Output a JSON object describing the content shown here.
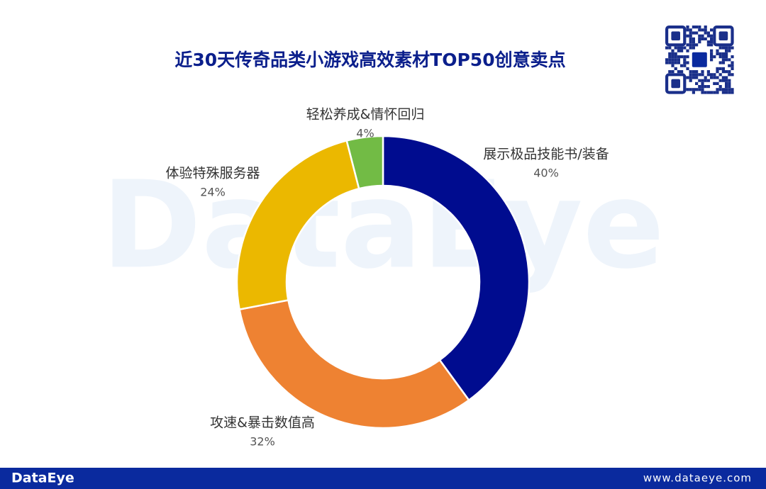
{
  "chart_data": {
    "type": "donut",
    "title": "近30天传奇品类小游戏高效素材TOP50创意卖点",
    "categories": [
      "展示极品技能书/装备",
      "攻速&暴击数值高",
      "体验特殊服务器",
      "轻松养成&情怀回归"
    ],
    "values": [
      40,
      32,
      24,
      4
    ],
    "value_labels": [
      "40%",
      "32%",
      "24%",
      "4%"
    ],
    "colors": [
      "#000c8f",
      "#ee8232",
      "#ebb800",
      "#72bb45"
    ]
  },
  "watermark": "DataEye",
  "footer": {
    "brand": "DataEye",
    "url": "www.dataeye.com"
  }
}
